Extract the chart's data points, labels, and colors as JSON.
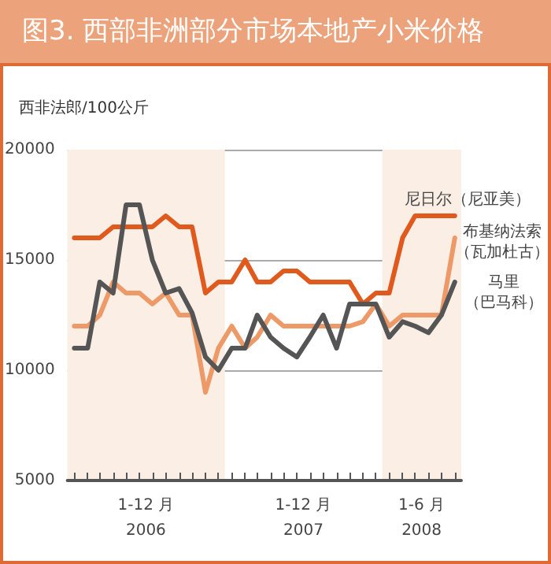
{
  "chart_data": {
    "type": "line",
    "title": "图3. 西部非洲部分市场本地产小米价格",
    "ylabel": "西非法郎/100公斤",
    "x": [
      "2006-01",
      "2006-02",
      "2006-03",
      "2006-04",
      "2006-05",
      "2006-06",
      "2006-07",
      "2006-08",
      "2006-09",
      "2006-10",
      "2006-11",
      "2006-12",
      "2007-01",
      "2007-02",
      "2007-03",
      "2007-04",
      "2007-05",
      "2007-06",
      "2007-07",
      "2007-08",
      "2007-09",
      "2007-10",
      "2007-11",
      "2007-12",
      "2008-01",
      "2008-02",
      "2008-03",
      "2008-04",
      "2008-05",
      "2008-06"
    ],
    "series": [
      {
        "name": "尼日尔（尼亚美）",
        "color": "#e05a1e",
        "values": [
          16000,
          16000,
          16000,
          16500,
          16500,
          16500,
          16500,
          17000,
          16500,
          16500,
          13500,
          14000,
          14000,
          15000,
          14000,
          14000,
          14500,
          14500,
          14000,
          14000,
          14000,
          14000,
          13000,
          13500,
          13500,
          16000,
          17000,
          17000,
          17000,
          17000
        ]
      },
      {
        "name": "布基纳法索（瓦加杜古）",
        "color": "#ee9a68",
        "values": [
          12000,
          12000,
          12500,
          14000,
          13500,
          13500,
          13000,
          13500,
          12500,
          12500,
          9000,
          11000,
          12000,
          11000,
          11500,
          12500,
          12000,
          12000,
          12000,
          12000,
          12000,
          12000,
          12200,
          13000,
          12000,
          12500,
          12500,
          12500,
          12500,
          16000
        ]
      },
      {
        "name": "马里（巴马科）",
        "color": "#555555",
        "values": [
          11000,
          11000,
          14000,
          13500,
          17500,
          17500,
          15000,
          13500,
          13700,
          12600,
          10600,
          10000,
          11000,
          11000,
          12500,
          11500,
          11000,
          10600,
          11500,
          12500,
          11000,
          13000,
          13000,
          13000,
          11500,
          12200,
          12000,
          11700,
          12500,
          14000
        ]
      }
    ],
    "xlim": [
      "2005-12-16",
      "2008-06-16"
    ],
    "xticks": [
      {
        "value": "2006-01",
        "label": null
      },
      {
        "value": "2006-02",
        "label": null
      },
      {
        "value": "2006-03",
        "label": null
      },
      {
        "value": "2006-04",
        "label": null
      },
      {
        "value": "2006-05",
        "label": null
      },
      {
        "value": "2006-06",
        "label": null
      },
      {
        "value": "2006-07",
        "label": null
      },
      {
        "value": "2006-08",
        "label": null
      },
      {
        "value": "2006-09",
        "label": null
      },
      {
        "value": "2006-10",
        "label": null
      },
      {
        "value": "2006-11",
        "label": null
      },
      {
        "value": "2006-12",
        "label": null
      },
      {
        "value": "2007-01",
        "label": null
      },
      {
        "value": "2007-02",
        "label": null
      },
      {
        "value": "2007-03",
        "label": null
      },
      {
        "value": "2007-04",
        "label": null
      },
      {
        "value": "2007-05",
        "label": null
      },
      {
        "value": "2007-06",
        "label": null
      },
      {
        "value": "2007-07",
        "label": null
      },
      {
        "value": "2007-08",
        "label": null
      },
      {
        "value": "2007-09",
        "label": null
      },
      {
        "value": "2007-10",
        "label": null
      },
      {
        "value": "2007-11",
        "label": null
      },
      {
        "value": "2007-12",
        "label": null
      },
      {
        "value": "2008-01",
        "label": null
      },
      {
        "value": "2008-02",
        "label": null
      },
      {
        "value": "2008-03",
        "label": null
      },
      {
        "value": "2008-04",
        "label": null
      },
      {
        "value": "2008-05",
        "label": null
      },
      {
        "value": "2008-06",
        "label": null
      },
      {
        "value": "2006-06-16",
        "label": "1-12 月\n2006"
      },
      {
        "value": "2007-06-16",
        "label": "1-12 月\n2007"
      },
      {
        "value": "2008-03-16",
        "label": "1-6 月\n2008"
      }
    ],
    "ylim": [
      5000,
      20000
    ],
    "yticks": [
      5000,
      10000,
      15000,
      20000
    ],
    "bands": [
      {
        "axis": "x",
        "from": "2005-12-16",
        "to": "2006-12-16",
        "color": "#fbeee5"
      },
      {
        "axis": "x",
        "from": "2007-12-16",
        "to": "2008-06-16",
        "color": "#fbeee5"
      }
    ],
    "grid": "y",
    "legend": false,
    "marker": "none",
    "line_style": "solid"
  }
}
